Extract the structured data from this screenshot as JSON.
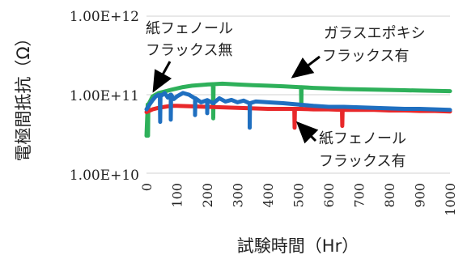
{
  "chart_data": {
    "type": "line",
    "title": "",
    "xlabel": "試験時間（Hr）",
    "ylabel": "電極間抵抗（Ω）",
    "xlim": [
      0,
      1000
    ],
    "ylim": [
      10000000000,
      1000000000000
    ],
    "yscale": "log",
    "grid": "horizontal",
    "x_ticks": [
      "0",
      "100",
      "200",
      "300",
      "400",
      "500",
      "600",
      "700",
      "800",
      "900",
      "1000"
    ],
    "y_ticks": [
      "1.00E+12",
      "1.00E+11",
      "1.00E+10"
    ],
    "colors": {
      "green": "#2eb05a",
      "red": "#e8282a",
      "blue": "#1f6fc0"
    },
    "series": [
      {
        "name": "ガラスエポキシ フラックス有",
        "color": "#2eb05a",
        "x": [
          0,
          5,
          10,
          20,
          40,
          60,
          80,
          100,
          120,
          150,
          200,
          250,
          300,
          350,
          400,
          450,
          500,
          550,
          600,
          650,
          700,
          750,
          800,
          850,
          900,
          950,
          1000
        ],
        "y": [
          30000000000,
          75000000000,
          80000000000,
          95000000000,
          105000000000,
          110000000000,
          115000000000,
          120000000000,
          125000000000,
          130000000000,
          135000000000,
          138000000000,
          135000000000,
          132000000000,
          130000000000,
          128000000000,
          125000000000,
          122000000000,
          120000000000,
          118000000000,
          117000000000,
          116000000000,
          115000000000,
          114000000000,
          113000000000,
          112000000000,
          111000000000
        ],
        "dips": [
          [
            5,
            30000000000
          ],
          [
            220,
            50000000000
          ],
          [
            510,
            68000000000
          ]
        ]
      },
      {
        "name": "紙フェノール フラックス有",
        "color": "#e8282a",
        "x": [
          0,
          20,
          40,
          60,
          80,
          100,
          150,
          200,
          250,
          300,
          350,
          400,
          450,
          500,
          550,
          600,
          650,
          700,
          750,
          800,
          850,
          900,
          950,
          1000
        ],
        "y": [
          60000000000,
          65000000000,
          68000000000,
          70000000000,
          72000000000,
          72000000000,
          71000000000,
          70000000000,
          69000000000,
          68000000000,
          67000000000,
          66000000000,
          66000000000,
          66000000000,
          65000000000,
          65000000000,
          64000000000,
          64000000000,
          64000000000,
          63000000000,
          63000000000,
          62000000000,
          62000000000,
          61000000000
        ],
        "dips": [
          [
            488,
            38000000000
          ],
          [
            645,
            40000000000
          ]
        ]
      },
      {
        "name": "紙フェノール フラックス無",
        "color": "#1f6fc0",
        "x": [
          0,
          10,
          20,
          30,
          40,
          50,
          60,
          70,
          80,
          90,
          100,
          120,
          140,
          160,
          180,
          200,
          220,
          240,
          260,
          280,
          300,
          320,
          340,
          360,
          400,
          450,
          500,
          550,
          600,
          650,
          700,
          750,
          800,
          850,
          900,
          950,
          1000
        ],
        "y": [
          65000000000,
          75000000000,
          85000000000,
          95000000000,
          100000000000,
          98000000000,
          105000000000,
          92000000000,
          100000000000,
          88000000000,
          95000000000,
          105000000000,
          100000000000,
          90000000000,
          80000000000,
          85000000000,
          78000000000,
          90000000000,
          82000000000,
          86000000000,
          80000000000,
          84000000000,
          78000000000,
          82000000000,
          80000000000,
          78000000000,
          75000000000,
          72000000000,
          70000000000,
          70000000000,
          69000000000,
          68000000000,
          67000000000,
          66000000000,
          66000000000,
          65000000000,
          64000000000
        ],
        "dips": [
          [
            45,
            45000000000
          ],
          [
            80,
            48000000000
          ],
          [
            160,
            55000000000
          ],
          [
            200,
            58000000000
          ],
          [
            340,
            38000000000
          ]
        ]
      }
    ],
    "annotations": [
      {
        "lines": [
          "紙フェノール",
          "フラックス無"
        ],
        "target": "紙フェノール フラックス無"
      },
      {
        "lines": [
          "ガラスエポキシ",
          "フラックス有"
        ],
        "target": "ガラスエポキシ フラックス有"
      },
      {
        "lines": [
          "紙フェノール",
          "フラックス有"
        ],
        "target": "紙フェノール フラックス有"
      }
    ]
  }
}
